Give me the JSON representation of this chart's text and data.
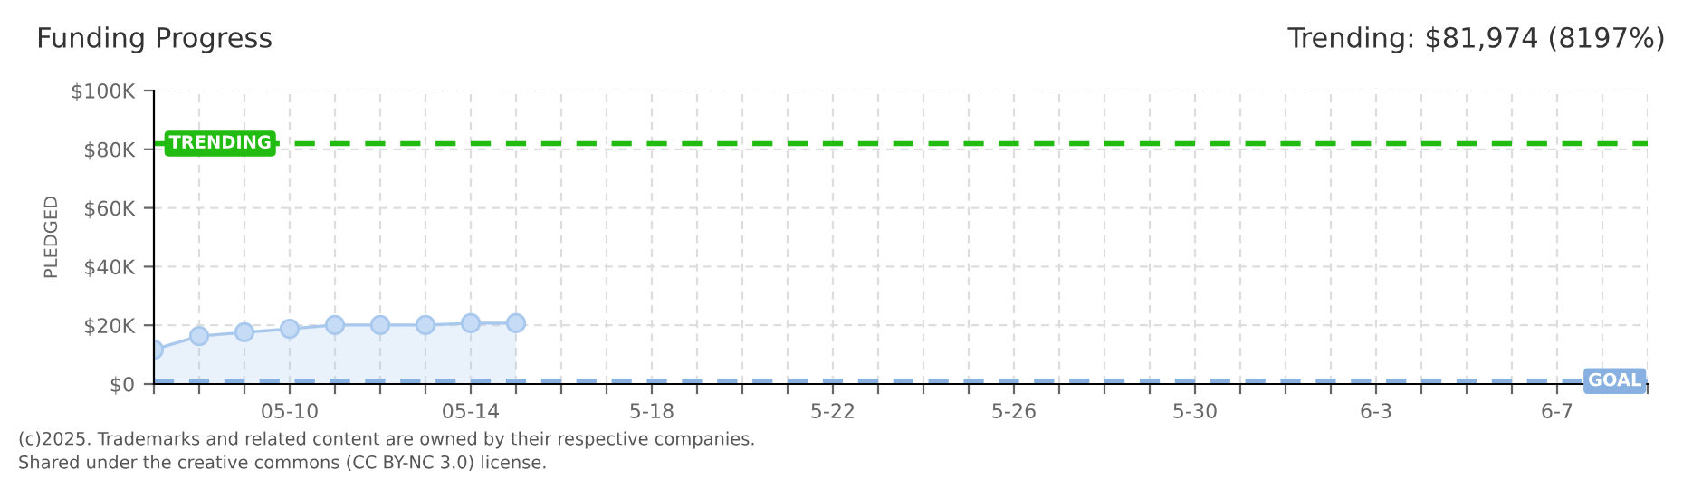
{
  "chart_data": {
    "type": "area",
    "title": "Funding Progress",
    "subtitle": "Trending: $81,974 (8197%)",
    "ylabel": "PLEDGED",
    "x": [
      "2025-05-07",
      "2025-05-08",
      "2025-05-09",
      "2025-05-10",
      "2025-05-11",
      "2025-05-12",
      "2025-05-13",
      "2025-05-14",
      "2025-05-15"
    ],
    "series": [
      {
        "color": "#a9c8ee",
        "values": [
          11700,
          16300,
          17600,
          18800,
          20100,
          20100,
          20100,
          20700,
          20700
        ]
      }
    ],
    "marker": "circle",
    "grid": true,
    "xlim": [
      "2025-05-07",
      "2025-06-09"
    ],
    "xticks": [
      {
        "value": "2025-05-07",
        "label": null
      },
      {
        "value": "2025-05-08",
        "label": null
      },
      {
        "value": "2025-05-09",
        "label": null
      },
      {
        "value": "2025-05-10",
        "label": "05-10"
      },
      {
        "value": "2025-05-11",
        "label": null
      },
      {
        "value": "2025-05-12",
        "label": null
      },
      {
        "value": "2025-05-13",
        "label": null
      },
      {
        "value": "2025-05-14",
        "label": "05-14"
      },
      {
        "value": "2025-05-15",
        "label": null
      },
      {
        "value": "2025-05-16",
        "label": null
      },
      {
        "value": "2025-05-17",
        "label": null
      },
      {
        "value": "2025-05-18",
        "label": "5-18"
      },
      {
        "value": "2025-05-19",
        "label": null
      },
      {
        "value": "2025-05-20",
        "label": null
      },
      {
        "value": "2025-05-21",
        "label": null
      },
      {
        "value": "2025-05-22",
        "label": "5-22"
      },
      {
        "value": "2025-05-23",
        "label": null
      },
      {
        "value": "2025-05-24",
        "label": null
      },
      {
        "value": "2025-05-25",
        "label": null
      },
      {
        "value": "2025-05-26",
        "label": "5-26"
      },
      {
        "value": "2025-05-27",
        "label": null
      },
      {
        "value": "2025-05-28",
        "label": null
      },
      {
        "value": "2025-05-29",
        "label": null
      },
      {
        "value": "2025-05-30",
        "label": "5-30"
      },
      {
        "value": "2025-05-31",
        "label": null
      },
      {
        "value": "2025-06-01",
        "label": null
      },
      {
        "value": "2025-06-02",
        "label": null
      },
      {
        "value": "2025-06-03",
        "label": "6-3"
      },
      {
        "value": "2025-06-04",
        "label": null
      },
      {
        "value": "2025-06-05",
        "label": null
      },
      {
        "value": "2025-06-06",
        "label": null
      },
      {
        "value": "2025-06-07",
        "label": "6-7"
      },
      {
        "value": "2025-06-08",
        "label": null
      },
      {
        "value": "2025-06-09",
        "label": null
      }
    ],
    "ylim": [
      0,
      100000
    ],
    "yticks": [
      {
        "value": 0,
        "label": "$0"
      },
      {
        "value": 20000,
        "label": "$20K"
      },
      {
        "value": 40000,
        "label": "$40K"
      },
      {
        "value": 60000,
        "label": "$60K"
      },
      {
        "value": 80000,
        "label": "$80K"
      },
      {
        "value": 100000,
        "label": "$100K"
      }
    ],
    "ref_lines": [
      {
        "axis": "y",
        "value": 81974,
        "label": "TRENDING",
        "color": "#22bb11",
        "line_style": "dashed"
      },
      {
        "axis": "y",
        "value": 1000,
        "label": "GOAL",
        "color": "#88b0e0",
        "line_style": "dashed"
      }
    ],
    "annotations": [
      "(c)2025. Trademarks and related content are owned by their respective companies.",
      "Shared under the creative commons (CC BY-NC 3.0) license."
    ]
  }
}
